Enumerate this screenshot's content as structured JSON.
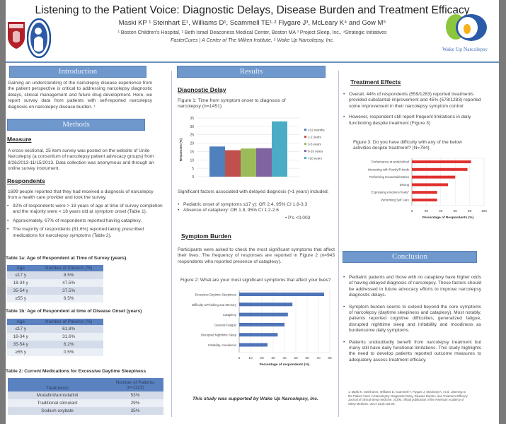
{
  "header": {
    "title": "Listening to the Patient Voice: Diagnostic Delays, Disease Burden and Treatment Efficacy",
    "authors": "Maski KP ¹ Steinhart E¹, Williams D¹, Scammell TE¹·² Flygare J³, McLeary K⁴ and Gow M⁵",
    "affil1": "¹ Boston Children's Hospital, ² Beth Israel Deaconess Medical Center, Boston MA ³ Project Sleep, Inc., ⁴Strategic Initiatives",
    "affil2": "FasterCures | A Center of The Milken Institute, ⁵ Wake Up Narcolepsy, Inc.",
    "logo_text": "Wake Up Narcolepsy"
  },
  "intro": {
    "heading": "Introduction",
    "text": "Gaining an understanding of the narcolepsy disease experience from the patient perspective is critical to addressing narcolepsy diagnostic delays, clinical management and future drug development. Here, we report survey data from patients with self-reported narcolepsy diagnosis on narcolepsy disease burden. ¹"
  },
  "methods": {
    "heading": "Methods",
    "measure_h": "Measure",
    "measure": "A cross-sectional, 25 item survey was posted on the website of Unite Narcolepsy (a consortium of narcolepsy patient advocacy groups) from 8/26/2013-11/15/2013. Data collection was anonymous and through an online survey instrument.",
    "resp_h": "Respondents",
    "resp": "1699 people reported that they had received a diagnosis of narcolepsy from a health care provider and took the survey.",
    "bullets": [
      "92% of respondents were > 18 years of age at time of survey completion and the majority were < 18 years old at symptom onset (Table 1).",
      "Approximately, 67% of respondents reported having cataplexy.",
      "The majority of respondents (81.6%) reported taking prescribed medications for narcolepsy symptoms (Table 2)."
    ]
  },
  "table1a": {
    "caption": "Table 1a: Age of Respondent at Time of Survey (years)",
    "headers": [
      "Age",
      "Number of Patients (%)"
    ],
    "rows": [
      [
        "≤17 y",
        "8.5%"
      ],
      [
        "18-34 y",
        "47.5%"
      ],
      [
        "35-54 y",
        "37.5%"
      ],
      [
        "≥55 y",
        "6.5%"
      ]
    ]
  },
  "table1b": {
    "caption": "Table 1b: Age of Respondent at time of Disease Onset (years)",
    "headers": [
      "Age",
      "Number of Patients (%)"
    ],
    "rows": [
      [
        "≤17 y",
        "61.8%"
      ],
      [
        "18-34 y",
        "31.6%"
      ],
      [
        "35-54 y",
        "6.2%"
      ],
      [
        "≥55 y",
        "0.5%"
      ]
    ]
  },
  "table2": {
    "caption": "Table 2: Current Medications for Excessive Daytime Sleepiness",
    "headers": [
      "Treatments",
      "Number of Patients (n=1113)"
    ],
    "rows": [
      [
        "Modafinil/armodafinil",
        "53%"
      ],
      [
        "Traditional stimulant",
        "29%"
      ],
      [
        "Sodium oxybate",
        "35%"
      ]
    ]
  },
  "results": {
    "heading": "Results",
    "delay_h": "Diagnostic Delay",
    "fig1_caption": "Figure 1: Time from symptom onset to diagnosis of narcolepsy (n=1451)",
    "factors": "Significant factors associated with delayed diagnosis (>1 years) included:",
    "factor_bullets": [
      "Pediatric onset of symptoms ≤17 y): OR 2.4, 95% CI 1.8-3.3",
      "Absence of cataplexy: OR 1.8, 95% CI 1.2-2.6"
    ],
    "pnote": "• P's <0.003",
    "burden_h": "Symptom Burden",
    "burden": "Participants were asked to check the most significant symptoms that affect their lives. The frequency of responses are reported in Figure 2 (n=943 respondents who reported presence of cataplexy).",
    "fig2_caption": "Figure 2: What are your most significant symptoms that affect your lives?",
    "support": "This study was supported by Wake Up Narcolepsy, Inc."
  },
  "treatment": {
    "heading": "Treatment Effects",
    "bullets": [
      "Overall, 44% of respondents (559/1283) reported treatments provided substantial improvement and 45% (578/1283) reported some improvement in their narcolepsy symptom control",
      "However, respondent still report frequent limitations in daily functioning despite treatment (Figure 3)"
    ],
    "fig3_caption": "Figure 3: Do you have difficulty with any of the below activities despite treatment? (N=784)"
  },
  "conclusion": {
    "heading": "Conclusion",
    "bullets": [
      "Pediatric patients and those with no cataplexy have higher odds of having delayed diagnosis of narcolepsy. These factors should be addressed in future advocacy efforts to improve narcolepsy diagnostic delays.",
      "Symptom burden seems to extend beyond the core symptoms of narcolepsy (daytime sleepiness and cataplexy). Most notably, patients reported cognitive difficulties, generalized fatigue, disrupted nighttime sleep and irritability and moodiness as burdensome daily symptoms.",
      "Patients undoubtedly benefit from narcolepsy treatment but many still have daily functional limitations. This study highlights the need to develop patients reported outcome measures to adequately assess treatment efficacy."
    ],
    "reference": "1. Maski K, Steinhart E, Williams D, Scammell T, Flygare J, McCleary K, et al. Listening to the Patient Voice in Narcolepsy: Diagnostic Delay, Disease Burden, and Treatment Efficacy. Journal of clinical sleep medicine: JCSM: official publication of the American Academy of Sleep Medicine. 2017;13(3):419-25."
  },
  "chart_data": [
    {
      "type": "bar",
      "title": "Figure 1",
      "ylabel": "Responses (%)",
      "ylim": [
        0,
        35
      ],
      "yticks": [
        0,
        5,
        10,
        15,
        20,
        25,
        30,
        35
      ],
      "categories": [
        "<12 months",
        "1-2 years",
        "3-5 years",
        "6-10 years",
        ">10 years"
      ],
      "values": [
        18,
        15.8,
        16.8,
        17,
        33
      ],
      "colors": [
        "#4f81bd",
        "#c0504d",
        "#9bbb59",
        "#8064a2",
        "#4bacc6"
      ],
      "legend": "right"
    },
    {
      "type": "bar",
      "orientation": "horizontal",
      "xlabel": "Percentage of respondents (%)",
      "xlim": [
        0,
        80
      ],
      "xticks": [
        0,
        10,
        20,
        30,
        40,
        50,
        60,
        70,
        80
      ],
      "categories": [
        "Excessive Daytime Sleepiness",
        "Difficulty w/Thinking and Memory",
        "Cataplexy",
        "General Fatigue",
        "Disrupted Nighttime Sleep",
        "Irritability, moodiness"
      ],
      "values": [
        75,
        47,
        43,
        40,
        34,
        25
      ],
      "color": "#4f74b8"
    },
    {
      "type": "bar",
      "orientation": "horizontal",
      "xlabel": "Percentage of Respondents (%)",
      "xlim": [
        0,
        100
      ],
      "xticks": [
        0,
        20,
        40,
        60,
        80,
        100
      ],
      "categories": [
        "Performance at work/school",
        "Interacting with Family/Friends",
        "Performing Household Duties",
        "Driving",
        "Expressing emotions freely*",
        "Performing Self Care"
      ],
      "values": [
        82,
        77,
        60,
        50,
        35,
        35
      ],
      "color": "#e0312f"
    }
  ]
}
